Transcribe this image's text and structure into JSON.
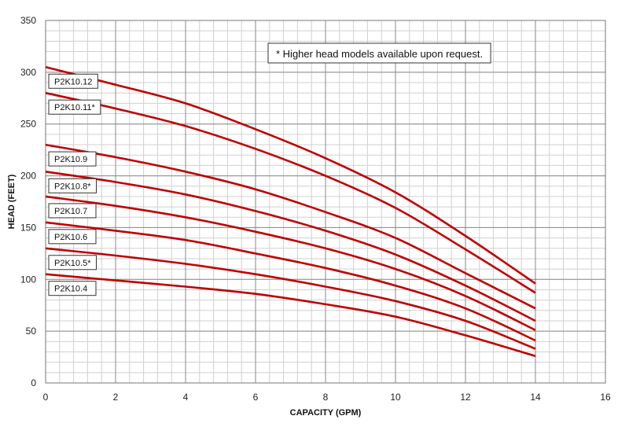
{
  "chart_data": {
    "type": "line",
    "title": "",
    "xlabel": "CAPACITY (GPM)",
    "ylabel": "HEAD (FEET)",
    "xlim": [
      0,
      16
    ],
    "ylim": [
      0,
      350
    ],
    "xticks": [
      "0",
      "2",
      "4",
      "6",
      "8",
      "10",
      "12",
      "14",
      "16"
    ],
    "yticks": [
      "0",
      "50",
      "100",
      "150",
      "200",
      "250",
      "300",
      "350"
    ],
    "grid": true,
    "line_color": "#c00000",
    "annotation": "* Higher head models available upon request.",
    "series": [
      {
        "name": "P2K10.12",
        "x": [
          0,
          2,
          4,
          6,
          8,
          10,
          12,
          14
        ],
        "values": [
          305,
          288,
          270,
          245,
          217,
          184,
          142,
          96
        ]
      },
      {
        "name": "P2K10.11*",
        "x": [
          0,
          2,
          4,
          6,
          8,
          10,
          12,
          14
        ],
        "values": [
          280,
          265,
          248,
          226,
          200,
          169,
          129,
          87
        ]
      },
      {
        "name": "P2K10.9",
        "x": [
          0,
          2,
          4,
          6,
          8,
          10,
          12,
          14
        ],
        "values": [
          230,
          218,
          204,
          187,
          165,
          140,
          106,
          72
        ]
      },
      {
        "name": "P2K10.8*",
        "x": [
          0,
          2,
          4,
          6,
          8,
          10,
          12,
          14
        ],
        "values": [
          204,
          194,
          182,
          166,
          147,
          124,
          94,
          60
        ]
      },
      {
        "name": "P2K10.7",
        "x": [
          0,
          2,
          4,
          6,
          8,
          10,
          12,
          14
        ],
        "values": [
          180,
          171,
          160,
          146,
          130,
          110,
          84,
          51
        ]
      },
      {
        "name": "P2K10.6",
        "x": [
          0,
          2,
          4,
          6,
          8,
          10,
          12,
          14
        ],
        "values": [
          155,
          147,
          138,
          125,
          111,
          94,
          72,
          41
        ]
      },
      {
        "name": "P2K10.5*",
        "x": [
          0,
          2,
          4,
          6,
          8,
          10,
          12,
          14
        ],
        "values": [
          130,
          123,
          115,
          105,
          93,
          79,
          60,
          33
        ]
      },
      {
        "name": "P2K10.4",
        "x": [
          0,
          2,
          4,
          6,
          8,
          10,
          12,
          14
        ],
        "values": [
          105,
          99,
          93,
          86,
          76,
          64,
          46,
          26
        ]
      }
    ]
  }
}
